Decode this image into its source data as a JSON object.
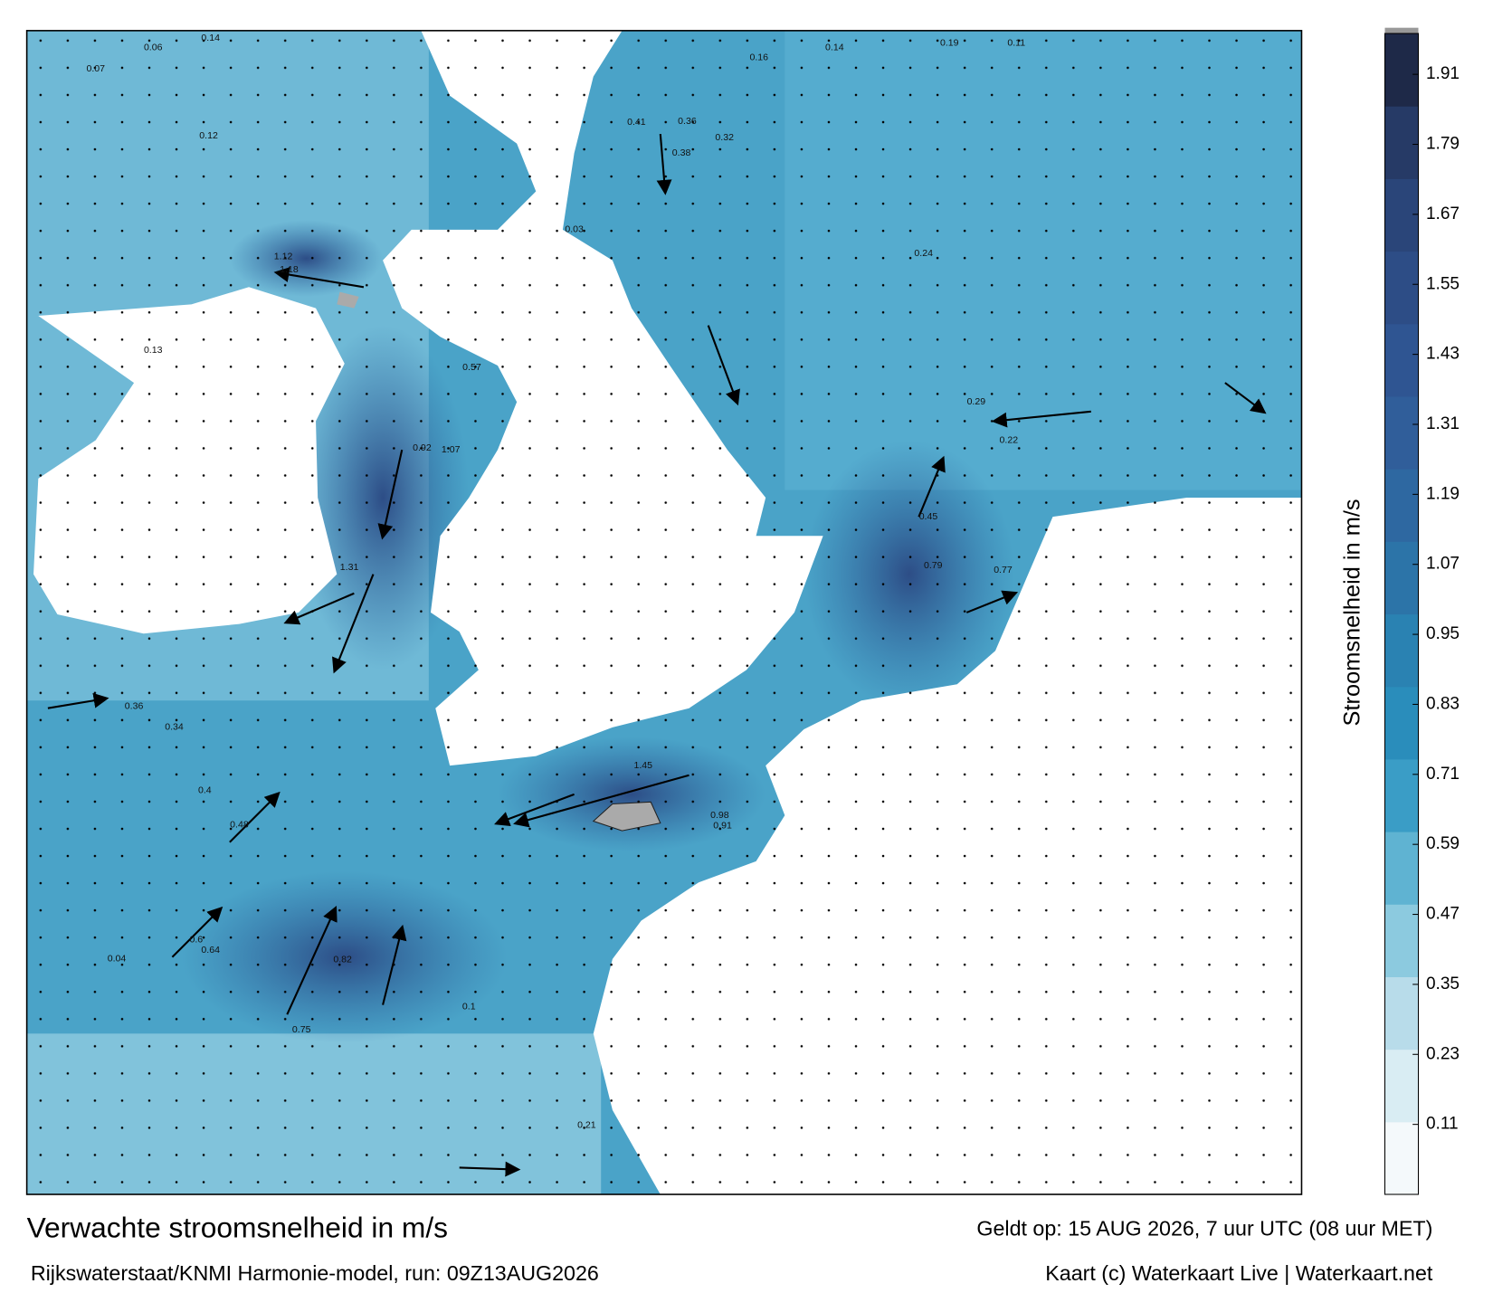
{
  "title": "Verwachte stroomsnelheid in m/s",
  "subtitle": "Rijkswaterstaat/KNMI Harmonie-model, run: 09Z13AUG2026",
  "valid_time": "Geldt op: 15 AUG 2026, 7 uur UTC (08 uur MET)",
  "credit": "Kaart (c) Waterkaart Live | Waterkaart.net",
  "colorbar": {
    "label": "Stroomsnelheid in m/s",
    "lim": [
      -0.01,
      1.98
    ],
    "ticks": [
      0.11,
      0.23,
      0.35,
      0.47,
      0.59,
      0.71,
      0.83,
      0.95,
      1.07,
      1.19,
      1.31,
      1.43,
      1.55,
      1.67,
      1.79,
      1.91
    ],
    "colors": [
      "#f4f9fb",
      "#d9edf3",
      "#b8dcea",
      "#8ccadf",
      "#5fb3d2",
      "#3a9dc6",
      "#2a8dbb",
      "#2a82b2",
      "#2c74a8",
      "#2e68a1",
      "#305e9a",
      "#2f5592",
      "#2d4d86",
      "#2a4579",
      "#263a66",
      "#1e2948"
    ]
  },
  "speed_labels": [
    0.14,
    0.06,
    0.07,
    0.12,
    0.41,
    0.36,
    0.38,
    0.32,
    0.16,
    0.14,
    0.19,
    0.11,
    1.12,
    1.18,
    0.57,
    1.07,
    0.92,
    1.31,
    0.36,
    0.34,
    0.4,
    0.48,
    0.6,
    0.64,
    0.75,
    0.82,
    1.45,
    0.98,
    0.91,
    0.77,
    0.79,
    0.45,
    0.22,
    0.24,
    0.04,
    0.21,
    0.29,
    0.13,
    0.03,
    0.1
  ]
}
